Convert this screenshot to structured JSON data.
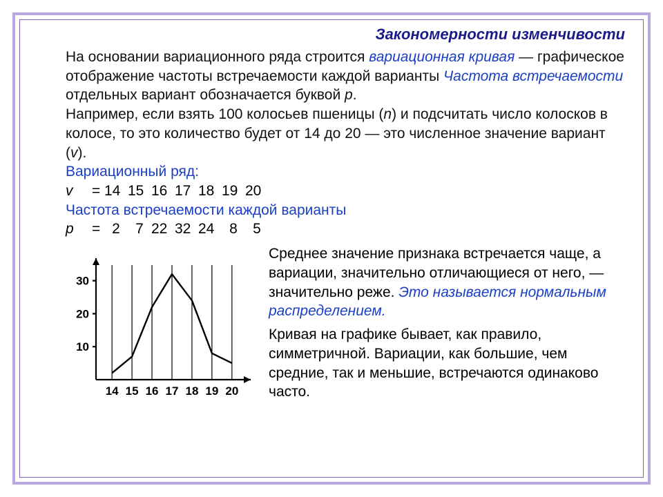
{
  "header": {
    "title": "Закономерности изменчивости"
  },
  "intro": {
    "text1a": "На основании вариационного ряда строится ",
    "term1": "вариационная кривая",
    "text1b": " — графическое отображение частоты встречаемости каждой варианты ",
    "term2": "Частота встречаемости",
    "text1c": " отдельных вариант обозначается буквой ",
    "var_p": "p",
    "text1d": ".",
    "text2a": "Например, если взять 100 колосьев пшеницы (",
    "var_n": "n",
    "text2b": ") и подсчитать число колосков в колосе, то это количество будет от 14 до 20 — это численное значение вариант (",
    "var_v": "v",
    "text2c": ")."
  },
  "series": {
    "label_v_title": "Вариационный ряд:",
    "label_v": "v",
    "eq": "=",
    "v_values": [
      "14",
      "15",
      "16",
      "17",
      "18",
      "19",
      "20"
    ],
    "label_p_title": "Частота встречаемости каждой варианты",
    "label_p": "p",
    "p_values": [
      "2",
      "7",
      "22",
      "32",
      "24",
      "8",
      "5"
    ]
  },
  "chart": {
    "type": "line",
    "x_values": [
      14,
      15,
      16,
      17,
      18,
      19,
      20
    ],
    "y_values": [
      2,
      7,
      22,
      32,
      24,
      8,
      5
    ],
    "x_labels": [
      "14",
      "15",
      "16",
      "17",
      "18",
      "19",
      "20"
    ],
    "y_ticks": [
      10,
      20,
      30
    ],
    "y_tick_labels": [
      "10",
      "20",
      "30"
    ],
    "xlim": [
      13.2,
      20.8
    ],
    "ylim": [
      0,
      36
    ],
    "line_color": "#000000",
    "line_width": 2.4,
    "axis_color": "#000000",
    "axis_width": 2.2,
    "grid_vertical": true,
    "grid_color": "#000000",
    "grid_width": 1.2,
    "background": "#ffffff",
    "label_fontsize": 17,
    "label_weight": "bold",
    "tick_fontsize": 17
  },
  "right": {
    "p1a": "Среднее значение признака встречается чаще, а вариации, значительно отличающиеся от него, — значительно реже. ",
    "p1_term": "Это называется нормальным распределением.",
    "p2": "Кривая на графике бывает, как правило, симметричной. Вариации, как большие, чем средние, так и меньшие, встречаются одинаково часто."
  }
}
